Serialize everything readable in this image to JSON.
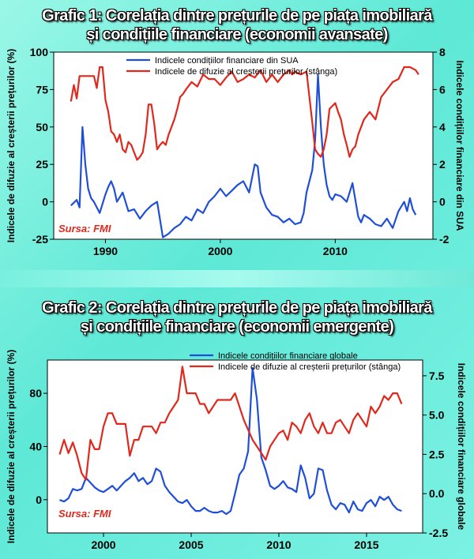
{
  "chart_data": [
    {
      "type": "line",
      "title": "Grafic 1: Corelația dintre prețurile de pe piața imobiliară și condițiile financiare (economii avansate)",
      "title_lines": [
        "Grafic 1: Corelația dintre prețurile de pe piața imobiliară",
        "și condițiile financiare (economii avansate)"
      ],
      "ylabel_left": "Indicele de difuzie al creșterii prețurilor (%)",
      "ylabel_right": "Indicele condițiilor financiare din SUA",
      "ylim_left": [
        -25,
        100
      ],
      "yticks_left": [
        -25,
        0,
        25,
        50,
        75,
        100
      ],
      "ylim_right": [
        -2,
        8
      ],
      "yticks_right": [
        -2,
        0,
        2,
        4,
        6,
        8
      ],
      "xlim": [
        1985.5,
        2018.5
      ],
      "xticks": [
        1990,
        2000,
        2010
      ],
      "source": "Sursa: FMI",
      "legend_position": "top",
      "series": [
        {
          "name": "Indicele condițiilor financiare din SUA",
          "color": "#1f4fd8",
          "axis": "right",
          "x": [
            1987.0,
            1987.5,
            1987.75,
            1988.0,
            1988.25,
            1988.5,
            1988.75,
            1989.0,
            1989.5,
            1990.0,
            1990.25,
            1990.5,
            1990.75,
            1991.0,
            1991.5,
            1992.0,
            1992.5,
            1993.0,
            1993.5,
            1994.0,
            1994.5,
            1995.0,
            1995.5,
            1996.0,
            1996.5,
            1997.0,
            1997.5,
            1998.0,
            1998.5,
            1999.0,
            1999.5,
            2000.0,
            2000.5,
            2001.0,
            2001.5,
            2002.0,
            2002.5,
            2003.0,
            2003.25,
            2003.5,
            2004.0,
            2004.5,
            2005.0,
            2005.5,
            2006.0,
            2006.5,
            2007.0,
            2007.25,
            2007.5,
            2008.0,
            2008.25,
            2008.5,
            2008.75,
            2009.0,
            2009.25,
            2009.5,
            2009.75,
            2010.0,
            2010.5,
            2011.0,
            2011.5,
            2012.0,
            2012.25,
            2012.5,
            2013.0,
            2013.5,
            2014.0,
            2014.5,
            2015.0,
            2015.5,
            2016.0,
            2016.25,
            2016.5,
            2016.75,
            2017.0
          ],
          "y": [
            -0.2,
            0.1,
            -0.3,
            4.0,
            2.0,
            0.7,
            0.2,
            0.0,
            -0.6,
            0.4,
            0.8,
            1.1,
            0.7,
            0.0,
            0.5,
            -0.5,
            -0.4,
            -0.9,
            -0.5,
            -0.2,
            0.0,
            -1.9,
            -1.7,
            -1.4,
            -1.2,
            -0.8,
            -1.0,
            -0.4,
            -0.6,
            0.0,
            0.3,
            0.7,
            0.3,
            0.6,
            0.9,
            1.1,
            0.5,
            2.0,
            1.9,
            0.5,
            -0.3,
            -0.7,
            -0.8,
            -1.1,
            -0.9,
            -1.2,
            -1.1,
            -0.6,
            0.5,
            1.7,
            3.3,
            6.8,
            4.0,
            2.0,
            0.9,
            0.3,
            0.1,
            0.4,
            0.3,
            0.0,
            1.0,
            -0.8,
            -1.1,
            -0.7,
            -0.9,
            -1.2,
            -1.3,
            -0.9,
            -1.4,
            -0.5,
            0.0,
            -0.5,
            0.2,
            -0.4,
            -0.7
          ]
        },
        {
          "name": "Indicele de difuzie al creșterii prețurilor (stânga)",
          "color": "#e0281c",
          "axis": "left",
          "x": [
            1987.0,
            1987.25,
            1987.5,
            1987.75,
            1988.0,
            1988.5,
            1989.0,
            1989.25,
            1989.5,
            1989.75,
            1990.0,
            1990.25,
            1990.5,
            1990.75,
            1991.0,
            1991.25,
            1991.5,
            1991.75,
            1992.0,
            1992.25,
            1992.5,
            1992.75,
            1993.0,
            1993.25,
            1993.5,
            1993.75,
            1994.0,
            1994.25,
            1994.5,
            1994.75,
            1995.0,
            1995.25,
            1995.5,
            1995.75,
            1996.0,
            1996.25,
            1996.5,
            1996.75,
            1997.0,
            1997.5,
            1998.0,
            1998.5,
            1999.0,
            1999.5,
            2000.0,
            2000.5,
            2001.0,
            2001.5,
            2002.0,
            2002.5,
            2003.0,
            2003.5,
            2004.0,
            2004.5,
            2005.0,
            2005.5,
            2006.0,
            2006.25,
            2006.5,
            2007.0,
            2007.5,
            2008.0,
            2008.25,
            2008.5,
            2008.75,
            2009.0,
            2009.25,
            2009.5,
            2010.0,
            2010.25,
            2010.5,
            2010.75,
            2011.0,
            2011.25,
            2011.5,
            2011.75,
            2012.0,
            2012.25,
            2012.5,
            2013.0,
            2013.5,
            2014.0,
            2014.5,
            2015.0,
            2015.5,
            2016.0,
            2016.5,
            2017.0,
            2017.25
          ],
          "y": [
            67,
            78,
            69,
            84,
            84,
            84,
            84,
            76,
            90,
            90,
            68,
            60,
            47,
            45,
            40,
            45,
            35,
            33,
            40,
            38,
            33,
            28,
            30,
            33,
            45,
            65,
            65,
            52,
            35,
            38,
            40,
            38,
            45,
            50,
            55,
            62,
            70,
            72,
            75,
            80,
            77,
            85,
            82,
            82,
            78,
            83,
            87,
            80,
            82,
            85,
            83,
            88,
            80,
            85,
            80,
            85,
            88,
            85,
            87,
            85,
            87,
            53,
            35,
            32,
            30,
            35,
            45,
            62,
            66,
            60,
            55,
            45,
            38,
            30,
            35,
            37,
            45,
            50,
            55,
            60,
            55,
            70,
            75,
            80,
            82,
            90,
            90,
            88,
            85
          ]
        }
      ]
    },
    {
      "type": "line",
      "title": "Grafic 2: Corelația dintre prețurile de pe piața imobiliară și condițiile financiare (economii emergente)",
      "title_lines": [
        "Grafic 2: Corelația dintre prețurile de pe piața imobiliară",
        "și condițiile financiare (economii emergente)"
      ],
      "ylabel_left": "Indicele de difuzie al creșterii prețurilor (%)",
      "ylabel_right": "Indicele condițiilor financiare globale",
      "ylim_left": [
        -25,
        105
      ],
      "yticks_left": [
        0,
        40,
        80
      ],
      "ylim_right": [
        -2.5,
        8.5
      ],
      "yticks_right": [
        -2.5,
        0.0,
        2.5,
        5.0,
        7.5
      ],
      "ytick_labels_right": [
        "-2.5",
        "0.0",
        "2.5",
        "5.0",
        "7.5"
      ],
      "xlim": [
        1996.8,
        2018.2
      ],
      "xticks": [
        2000,
        2005,
        2010,
        2015
      ],
      "source": "Sursa: FMI",
      "legend_position": "top",
      "series": [
        {
          "name": "Indicele condițiilor financiare globale",
          "color": "#1f4fd8",
          "axis": "right",
          "x": [
            1997.5,
            1997.75,
            1998.0,
            1998.25,
            1998.5,
            1998.75,
            1999.0,
            1999.25,
            1999.5,
            1999.75,
            2000.0,
            2000.25,
            2000.5,
            2000.75,
            2001.0,
            2001.25,
            2001.5,
            2001.75,
            2002.0,
            2002.25,
            2002.5,
            2002.75,
            2003.0,
            2003.25,
            2003.5,
            2003.75,
            2004.0,
            2004.25,
            2004.5,
            2004.75,
            2005.0,
            2005.25,
            2005.5,
            2005.75,
            2006.0,
            2006.25,
            2006.5,
            2006.75,
            2007.0,
            2007.25,
            2007.5,
            2007.75,
            2008.0,
            2008.25,
            2008.5,
            2008.75,
            2009.0,
            2009.25,
            2009.5,
            2009.75,
            2010.0,
            2010.25,
            2010.5,
            2010.75,
            2011.0,
            2011.25,
            2011.5,
            2011.75,
            2012.0,
            2012.25,
            2012.5,
            2012.75,
            2013.0,
            2013.25,
            2013.5,
            2013.75,
            2014.0,
            2014.25,
            2014.5,
            2014.75,
            2015.0,
            2015.25,
            2015.5,
            2015.75,
            2016.0,
            2016.25,
            2016.5,
            2016.75,
            2017.0
          ],
          "y": [
            -0.4,
            -0.5,
            -0.3,
            0.3,
            0.2,
            0.3,
            1.0,
            0.7,
            0.4,
            0.2,
            0.1,
            0.3,
            0.5,
            0.2,
            0.5,
            0.8,
            1.0,
            1.3,
            0.8,
            1.0,
            0.6,
            0.8,
            1.6,
            1.4,
            0.5,
            0.1,
            -0.2,
            -0.5,
            -0.6,
            -0.4,
            -0.8,
            -1.1,
            -1.1,
            -0.9,
            -1.1,
            -1.2,
            -1.2,
            -1.1,
            -1.3,
            -1.1,
            0.0,
            1.2,
            1.6,
            2.7,
            8.0,
            6.0,
            2.3,
            1.5,
            0.5,
            0.3,
            0.5,
            0.8,
            0.4,
            0.3,
            0.1,
            1.8,
            1.0,
            -0.3,
            0.0,
            1.6,
            1.5,
            0.2,
            -0.7,
            -1.0,
            -0.6,
            -0.7,
            -1.2,
            -0.5,
            -1.0,
            -1.1,
            -0.6,
            -0.4,
            -0.8,
            -0.2,
            -0.4,
            -0.2,
            -0.7,
            -1.0,
            -1.1
          ]
        },
        {
          "name": "Indicele de difuzie al creșterii prețurilor (stânga)",
          "color": "#e0281c",
          "axis": "left",
          "x": [
            1997.5,
            1997.75,
            1998.0,
            1998.25,
            1998.5,
            1998.75,
            1999.0,
            1999.25,
            1999.5,
            1999.75,
            2000.0,
            2000.25,
            2000.5,
            2000.75,
            2001.0,
            2001.25,
            2001.5,
            2001.75,
            2002.0,
            2002.25,
            2002.5,
            2002.75,
            2003.0,
            2003.25,
            2003.5,
            2003.75,
            2004.0,
            2004.25,
            2004.5,
            2004.75,
            2005.0,
            2005.25,
            2005.5,
            2005.75,
            2006.0,
            2006.5,
            2007.0,
            2007.25,
            2007.5,
            2008.0,
            2008.5,
            2009.0,
            2009.25,
            2009.5,
            2010.0,
            2010.25,
            2010.5,
            2010.75,
            2011.0,
            2011.25,
            2011.5,
            2011.75,
            2012.0,
            2012.25,
            2012.5,
            2012.75,
            2013.0,
            2013.25,
            2013.5,
            2013.75,
            2014.0,
            2014.25,
            2014.5,
            2014.75,
            2015.0,
            2015.25,
            2015.5,
            2015.75,
            2016.0,
            2016.25,
            2016.5,
            2016.75,
            2017.0
          ],
          "y": [
            34,
            45,
            35,
            43,
            33,
            20,
            15,
            45,
            38,
            38,
            55,
            65,
            65,
            57,
            57,
            57,
            33,
            45,
            45,
            55,
            55,
            55,
            50,
            58,
            58,
            65,
            70,
            75,
            100,
            80,
            80,
            80,
            72,
            72,
            65,
            75,
            75,
            75,
            80,
            60,
            45,
            35,
            30,
            40,
            50,
            52,
            45,
            58,
            55,
            50,
            60,
            65,
            55,
            50,
            58,
            50,
            50,
            58,
            60,
            55,
            50,
            60,
            65,
            60,
            55,
            70,
            65,
            70,
            78,
            75,
            80,
            80,
            72
          ]
        }
      ]
    }
  ]
}
